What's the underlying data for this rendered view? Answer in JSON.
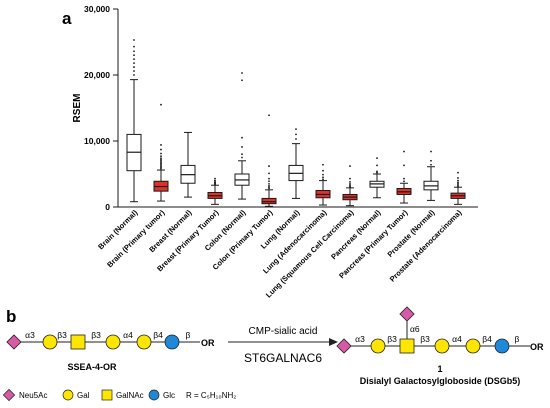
{
  "panel_a": {
    "label": "a",
    "ylabel": "RSEM",
    "yticks": [
      "0",
      "10,000",
      "20,000",
      "30,000"
    ],
    "colors": {
      "normal": "#ffffff",
      "tumor": "#e0302b",
      "line": "#1a1a1a"
    }
  },
  "chart_data": {
    "type": "boxplot",
    "title": "",
    "xlabel": "",
    "ylabel": "RSEM",
    "ylim": [
      0,
      30000
    ],
    "categories": [
      "Brain (Normal)",
      "Brain (Primary tumor)",
      "Breast (Normal)",
      "Breast (Primary Tumor)",
      "Colon (Normal)",
      "Colon (Primary Tumor)",
      "Lung (Normal)",
      "Lung (Adenocarcinoma)",
      "Lung (Squamous Cell Carcinoma)",
      "Pancreas (Normal)",
      "Pancreas (Primary Tumor)",
      "Prostate (Normal)",
      "Prostate (Adenocarcinoma)"
    ],
    "boxes": [
      {
        "group": "normal",
        "whisker_low": 800,
        "q1": 5500,
        "median": 8300,
        "q3": 11000,
        "whisker_high": 19300,
        "outliers": [
          20000,
          20600,
          21200,
          21800,
          22400,
          23000,
          23600,
          24300,
          25300
        ]
      },
      {
        "group": "tumor",
        "whisker_low": 900,
        "q1": 2400,
        "median": 3100,
        "q3": 3900,
        "whisker_high": 5600,
        "outliers": [
          5800,
          6000,
          6200,
          6400,
          6600,
          6800,
          7000,
          7200,
          7400,
          7700,
          8100,
          8700,
          9400,
          15500
        ]
      },
      {
        "group": "normal",
        "whisker_low": 1500,
        "q1": 3600,
        "median": 4900,
        "q3": 6300,
        "whisker_high": 11300,
        "outliers": []
      },
      {
        "group": "tumor",
        "whisker_low": 400,
        "q1": 1300,
        "median": 1700,
        "q3": 2200,
        "whisker_high": 3300,
        "outliers": [
          3400,
          3500,
          3600,
          3700,
          3800,
          4000,
          4300
        ]
      },
      {
        "group": "normal",
        "whisker_low": 1200,
        "q1": 3300,
        "median": 4100,
        "q3": 5000,
        "whisker_high": 7000,
        "outliers": [
          7500,
          8000,
          9100,
          10500,
          19200,
          20300
        ]
      },
      {
        "group": "tumor",
        "whisker_low": 100,
        "q1": 500,
        "median": 800,
        "q3": 1300,
        "whisker_high": 2600,
        "outliers": [
          2800,
          3000,
          3200,
          3500,
          3900,
          4300,
          5100,
          6200,
          13900
        ]
      },
      {
        "group": "normal",
        "whisker_low": 1300,
        "q1": 4000,
        "median": 5100,
        "q3": 6300,
        "whisker_high": 9600,
        "outliers": [
          10300,
          11000,
          11800
        ]
      },
      {
        "group": "tumor",
        "whisker_low": 300,
        "q1": 1400,
        "median": 1900,
        "q3": 2500,
        "whisker_high": 4000,
        "outliers": [
          4200,
          4500,
          4900,
          5500,
          6400
        ]
      },
      {
        "group": "tumor",
        "whisker_low": 200,
        "q1": 1100,
        "median": 1500,
        "q3": 1900,
        "whisker_high": 2900,
        "outliers": [
          3000,
          3100,
          3300,
          3500,
          3800,
          4300,
          6200
        ]
      },
      {
        "group": "normal",
        "whisker_low": 1400,
        "q1": 3000,
        "median": 3500,
        "q3": 3900,
        "whisker_high": 5000,
        "outliers": [
          5200,
          5400,
          6300,
          7400
        ]
      },
      {
        "group": "tumor",
        "whisker_low": 600,
        "q1": 1900,
        "median": 2300,
        "q3": 2800,
        "whisker_high": 3600,
        "outliers": [
          3900,
          4300,
          6300,
          8400
        ]
      },
      {
        "group": "normal",
        "whisker_low": 1000,
        "q1": 2600,
        "median": 3200,
        "q3": 3900,
        "whisker_high": 6100,
        "outliers": [
          6400,
          7000,
          8400
        ]
      },
      {
        "group": "tumor",
        "whisker_low": 400,
        "q1": 1300,
        "median": 1700,
        "q3": 2100,
        "whisker_high": 3000,
        "outliers": [
          3100,
          3300,
          3500,
          3700,
          4000,
          4400,
          5200
        ]
      }
    ]
  },
  "panel_b": {
    "label": "b",
    "reagent_top": "CMP-sialic acid",
    "reagent_bottom": "ST6GALNAC6",
    "substrate_name": "SSEA-4-OR",
    "product_number": "1",
    "product_name": "Disialyl Galactosylgloboside (DSGb5)",
    "or_label": "OR",
    "linkages_left": [
      "α3",
      "β3",
      "β3",
      "α4",
      "β4",
      "β"
    ],
    "linkages_right": [
      "α3",
      "β3",
      "β3",
      "α4",
      "β4",
      "β"
    ],
    "branch_linkage": "α6",
    "legend": {
      "neu5ac": "Neu5Ac",
      "gal": "Gal",
      "galnac": "GalNAc",
      "glc": "Glc",
      "r_def": "R = C₅H₁₀NH₂"
    },
    "colors": {
      "neu5ac": "#d65aa6",
      "gal": "#ffe600",
      "galnac": "#ffe600",
      "glc": "#1e88d9"
    }
  }
}
